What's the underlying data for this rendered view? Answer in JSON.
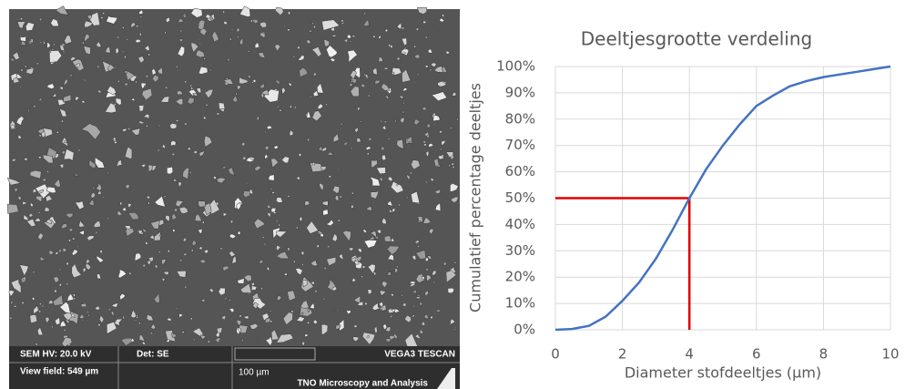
{
  "sem_image": {
    "info": {
      "hv": "SEM HV: 20.0 kV",
      "detector": "Det: SE",
      "brand": "VEGA3 TESCAN",
      "view_field": "View field: 549 µm",
      "scale": "100 µm",
      "lab": "TNO Microscopy and Analysis"
    }
  },
  "chart_data": {
    "type": "line",
    "title": "Deeltjesgrootte verdeling",
    "x_label": "Diameter stofdeeltjes (µm)",
    "y_label": "Cumulatief percentage deeltjes",
    "x": [
      0,
      0.5,
      1,
      1.5,
      2,
      2.5,
      3,
      3.5,
      4,
      4.5,
      5,
      5.5,
      6,
      6.5,
      7,
      7.5,
      8,
      8.5,
      9,
      9.5,
      10
    ],
    "series": [
      {
        "color": "#4472c4",
        "values": [
          0,
          0.3,
          1.5,
          5,
          11,
          18,
          27,
          38,
          50,
          61,
          70,
          78,
          85,
          89,
          92.5,
          94.5,
          96,
          97,
          98,
          99,
          100
        ]
      }
    ],
    "reference": {
      "x": 4,
      "y": 50,
      "color": "#e00000"
    },
    "xlim": [
      0,
      10
    ],
    "xticks": [
      0,
      2,
      4,
      6,
      8,
      10
    ],
    "ylim": [
      0,
      100
    ],
    "yticks": [
      {
        "value": 0,
        "label": "0%"
      },
      {
        "value": 10,
        "label": "10%"
      },
      {
        "value": 20,
        "label": "20%"
      },
      {
        "value": 30,
        "label": "30%"
      },
      {
        "value": 40,
        "label": "40%"
      },
      {
        "value": 50,
        "label": "50%"
      },
      {
        "value": 60,
        "label": "60%"
      },
      {
        "value": 70,
        "label": "70%"
      },
      {
        "value": 80,
        "label": "80%"
      },
      {
        "value": 90,
        "label": "90%"
      },
      {
        "value": 100,
        "label": "100%"
      }
    ],
    "grid": true
  }
}
